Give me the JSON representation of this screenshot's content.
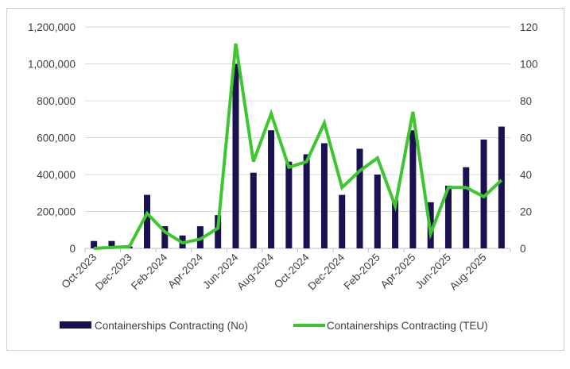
{
  "chart_data": {
    "type": "bar+line",
    "title": "",
    "categories": [
      "Oct-2023",
      "",
      "Dec-2023",
      "",
      "Feb-2024",
      "",
      "Apr-2024",
      "",
      "Jun-2024",
      "",
      "Aug-2024",
      "",
      "Oct-2024",
      "",
      "Dec-2024",
      "",
      "Feb-2025",
      "",
      "Apr-2025",
      "",
      "Jun-2025",
      "",
      "Aug-2025",
      ""
    ],
    "series": [
      {
        "name": "Containerships Contracting (No)",
        "type": "bar",
        "axis": "right",
        "color": "#1a1250",
        "values": [
          4,
          4,
          1,
          29,
          12,
          7,
          12,
          18,
          100,
          41,
          64,
          47,
          51,
          57,
          29,
          54,
          40,
          26,
          64,
          25,
          34,
          44,
          59,
          66
        ]
      },
      {
        "name": "Containerships Contracting (TEU)",
        "type": "line",
        "axis": "left",
        "color": "#3ec62e",
        "values": [
          0,
          5000,
          10000,
          190000,
          90000,
          30000,
          50000,
          110000,
          1110000,
          470000,
          730000,
          440000,
          470000,
          680000,
          330000,
          420000,
          490000,
          230000,
          740000,
          80000,
          330000,
          330000,
          280000,
          370000
        ]
      }
    ],
    "y_left": {
      "ylim": [
        0,
        1200000
      ],
      "ticks": [
        "0",
        "200,000",
        "400,000",
        "600,000",
        "800,000",
        "1,000,000",
        "1,200,000"
      ]
    },
    "y_right": {
      "ylim": [
        0,
        120
      ],
      "ticks": [
        "0",
        "20",
        "40",
        "60",
        "80",
        "100",
        "120"
      ]
    },
    "grid": true,
    "legend": "bottom"
  }
}
